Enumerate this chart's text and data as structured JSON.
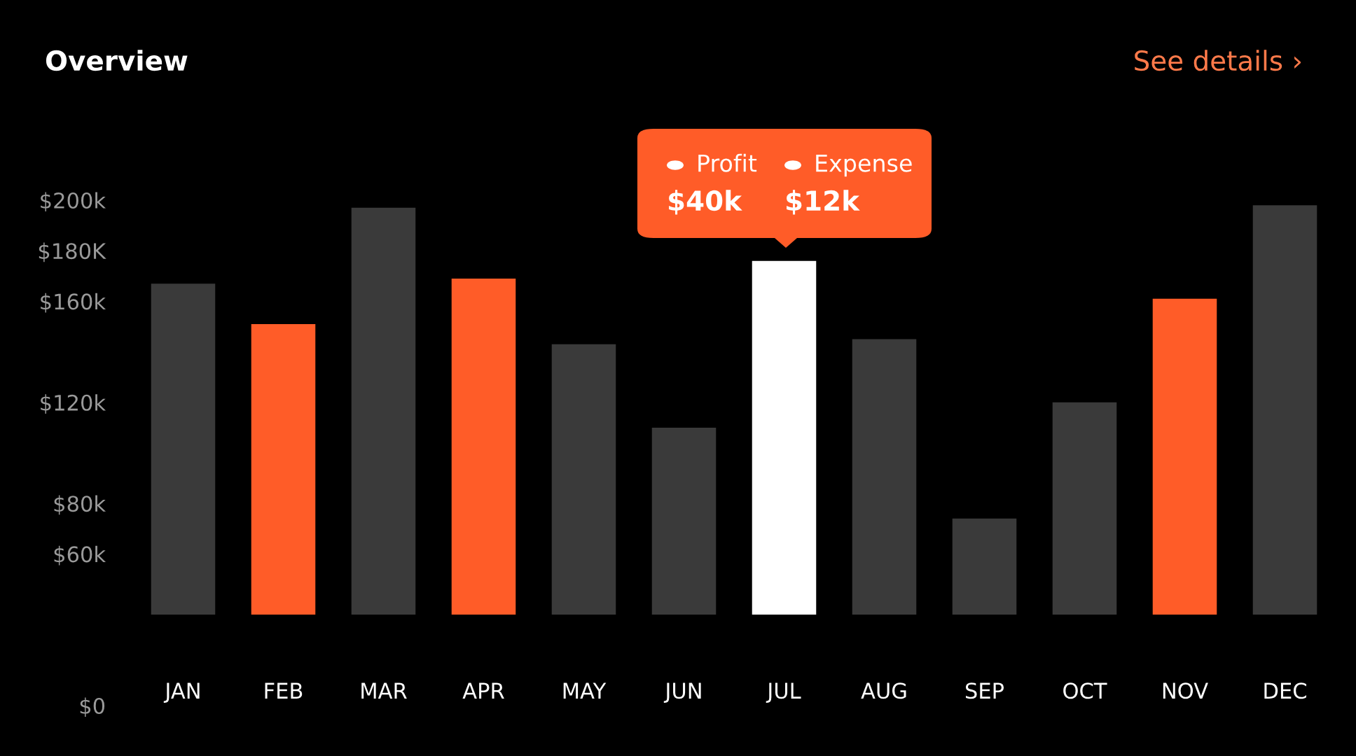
{
  "chart_data": {
    "type": "bar",
    "title": "Overview",
    "categories": [
      "JAN",
      "FEB",
      "MAR",
      "APR",
      "MAY",
      "JUN",
      "JUL",
      "AUG",
      "SEP",
      "OCT",
      "NOV",
      "DEC"
    ],
    "values": [
      131,
      115,
      161,
      133,
      107,
      74,
      140,
      109,
      38,
      84,
      125,
      162
    ],
    "base": [
      36,
      36,
      36,
      36,
      36,
      36,
      36,
      36,
      36,
      36,
      36,
      36
    ],
    "colors": [
      "#3a3a3a",
      "#ff5c28",
      "#3a3a3a",
      "#ff5c28",
      "#3a3a3a",
      "#3a3a3a",
      "#ffffff",
      "#3a3a3a",
      "#3a3a3a",
      "#3a3a3a",
      "#ff5c28",
      "#3a3a3a"
    ],
    "ylim": [
      0,
      200
    ],
    "yticks": [
      {
        "value": 0,
        "label": "$0"
      },
      {
        "value": 60,
        "label": "$60k"
      },
      {
        "value": 80,
        "label": "$80k"
      },
      {
        "value": 120,
        "label": "$120k"
      },
      {
        "value": 160,
        "label": "$160k"
      },
      {
        "value": 180,
        "label": "$180K"
      },
      {
        "value": 200,
        "label": "$200k"
      }
    ],
    "grid": false,
    "annotations": [
      "See details ›",
      "Profit",
      "Expense",
      "$40k",
      "$12k"
    ]
  }
}
